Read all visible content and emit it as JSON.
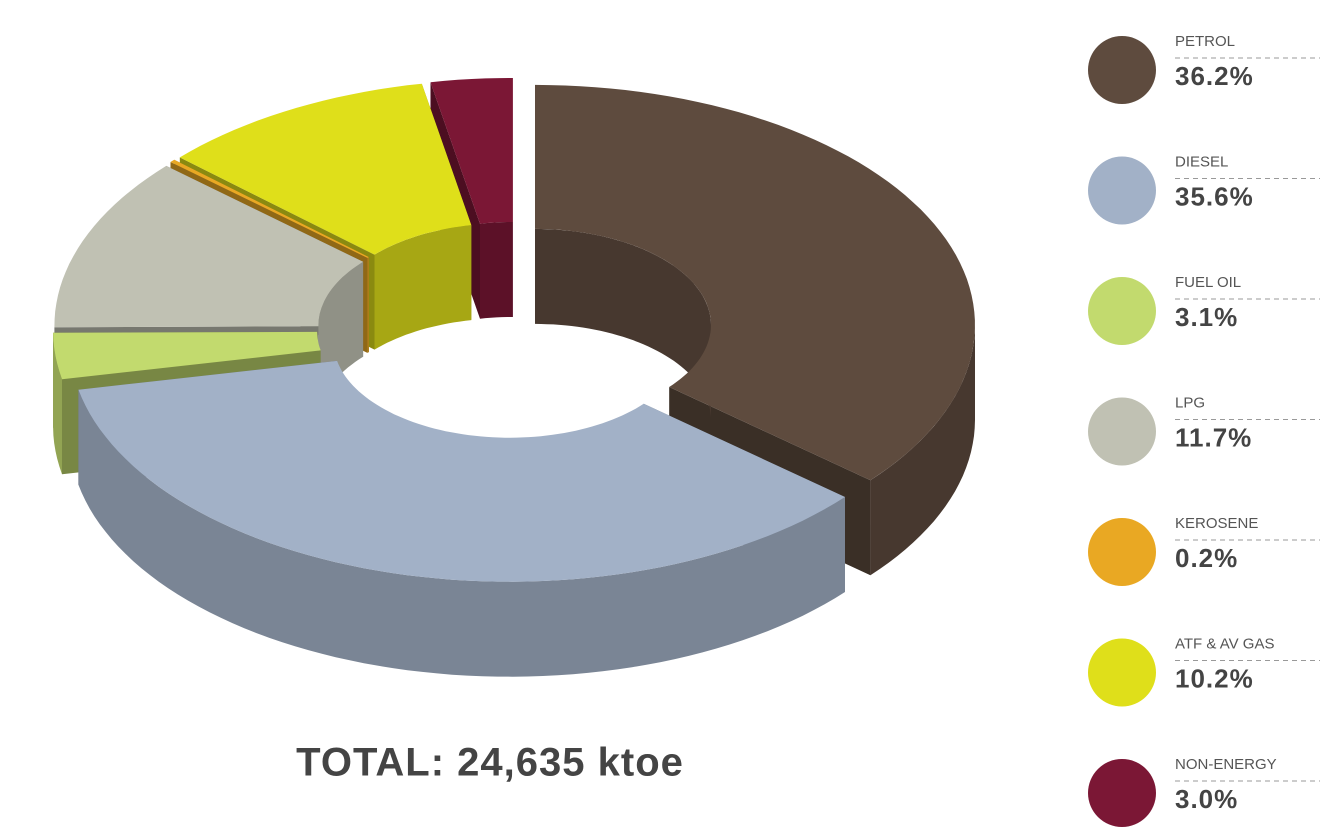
{
  "chart_data": {
    "type": "pie",
    "categories": [
      "PETROL",
      "DIESEL",
      "FUEL OIL",
      "LPG",
      "KEROSENE",
      "ATF & AV GAS",
      "NON-ENERGY"
    ],
    "values": [
      36.2,
      35.6,
      3.1,
      11.7,
      0.2,
      10.2,
      3.0
    ],
    "value_labels": [
      "36.2%",
      "35.6%",
      "3.1%",
      "11.7%",
      "0.2%",
      "10.2%",
      "3.0%"
    ],
    "colors": [
      "#5e4b3e",
      "#a2b1c7",
      "#c2da6e",
      "#c0c1b3",
      "#e9a823",
      "#dfdf1a",
      "#7b1735"
    ],
    "total_label": "TOTAL: 24,635 ktoe"
  }
}
